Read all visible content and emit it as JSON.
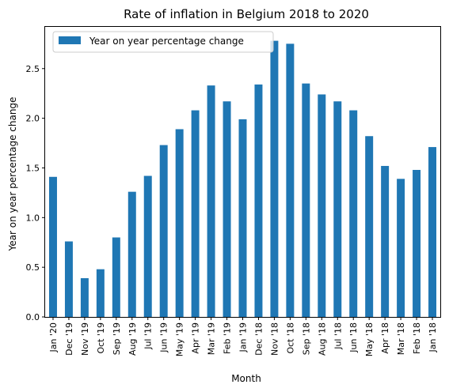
{
  "chart_data": {
    "type": "bar",
    "title": "Rate of inflation in Belgium 2018 to 2020",
    "xlabel": "Month",
    "ylabel": "Year on year percentage change",
    "categories": [
      "Jan '20",
      "Dec '19",
      "Nov '19",
      "Oct '19",
      "Sep '19",
      "Aug '19",
      "Jul '19",
      "Jun '19",
      "May '19",
      "Apr '19",
      "Mar '19",
      "Feb '19",
      "Jan '19",
      "Dec '18",
      "Nov '18",
      "Oct '18",
      "Sep '18",
      "Aug '18",
      "Jul '18",
      "Jun '18",
      "May '18",
      "Apr '18",
      "Mar '18",
      "Feb '18",
      "Jan '18"
    ],
    "series": [
      {
        "name": "Year on year percentage change",
        "values": [
          1.41,
          0.76,
          0.39,
          0.48,
          0.8,
          1.26,
          1.42,
          1.73,
          1.89,
          2.08,
          2.33,
          2.17,
          1.99,
          2.34,
          2.78,
          2.75,
          2.35,
          2.24,
          2.17,
          2.08,
          1.82,
          1.52,
          1.39,
          1.48,
          1.71
        ]
      }
    ],
    "ylim": [
      0,
      2.92
    ],
    "yticks": [
      0.0,
      0.5,
      1.0,
      1.5,
      2.0,
      2.5
    ],
    "ytick_labels": [
      "0.0",
      "0.5",
      "1.0",
      "1.5",
      "2.0",
      "2.5"
    ],
    "legend_position": "top-left",
    "grid": false,
    "bar_color": "#1f77b4"
  }
}
